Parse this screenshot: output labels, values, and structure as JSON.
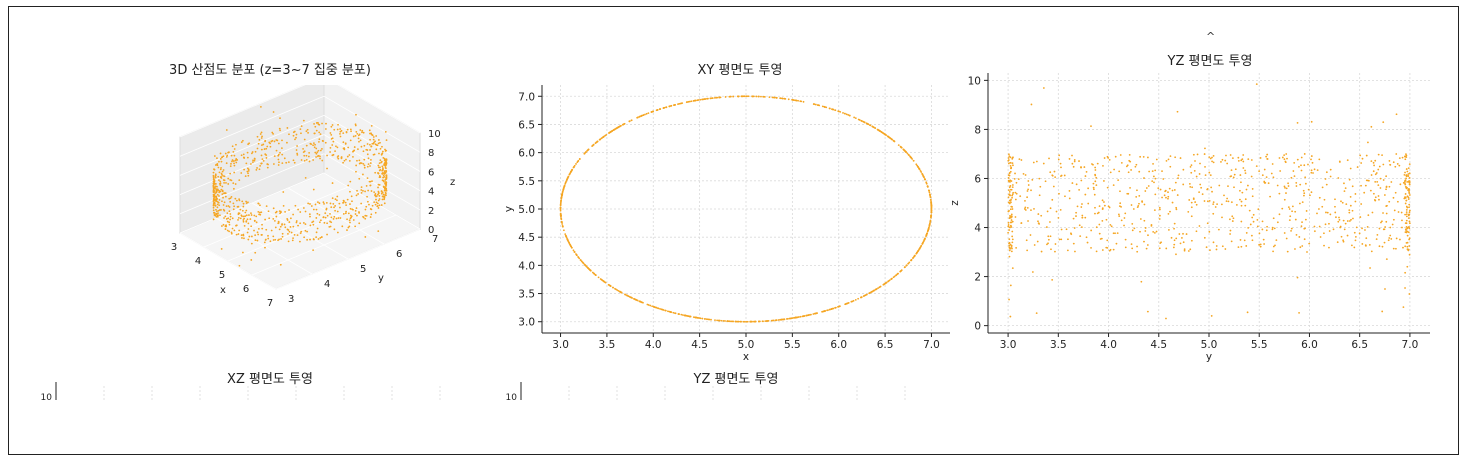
{
  "colors": {
    "points": "#f5a623",
    "axis": "#222222",
    "grid": "#d9d9d9",
    "pane": "#f2f2f2"
  },
  "caret": "^",
  "chart_data": [
    {
      "id": "p3d",
      "type": "scatter",
      "title": "3D 산점도 분포 (z=3~7 집중 분포)",
      "xlabel": "x",
      "ylabel": "y",
      "zlabel": "z",
      "xlim": [
        3,
        7
      ],
      "ylim": [
        3,
        7
      ],
      "zlim": [
        0,
        10
      ],
      "x_ticks": [
        "3",
        "4",
        "5",
        "6",
        "7"
      ],
      "y_ticks": [
        "3",
        "4",
        "5",
        "6",
        "7"
      ],
      "z_ticks": [
        "0",
        "2",
        "4",
        "6",
        "8",
        "10"
      ],
      "grid": true,
      "points_description_note": "",
      "circle": {
        "center": [
          5,
          5
        ],
        "radius": 2
      },
      "z_dense_range": [
        3,
        7
      ],
      "z_full_range": [
        0,
        10
      ],
      "n_points": 1000
    },
    {
      "id": "pxy",
      "type": "scatter",
      "title": "XY 평면도 투영",
      "xlabel": "x",
      "ylabel": "y",
      "xlim": [
        2.8,
        7.2
      ],
      "ylim": [
        2.8,
        7.2
      ],
      "x_ticks": [
        "3.0",
        "3.5",
        "4.0",
        "4.5",
        "5.0",
        "5.5",
        "6.0",
        "6.5",
        "7.0"
      ],
      "y_ticks": [
        "3.0",
        "3.5",
        "4.0",
        "4.5",
        "5.0",
        "5.5",
        "6.0",
        "6.5",
        "7.0"
      ],
      "grid": true,
      "circle": {
        "center": [
          5,
          5
        ],
        "radius": 2
      },
      "n_points": 1000
    },
    {
      "id": "pyz",
      "type": "scatter",
      "title": "YZ 평면도 투영",
      "xlabel": "y",
      "ylabel": "z",
      "xlim": [
        2.8,
        7.2
      ],
      "ylim": [
        -0.3,
        10.3
      ],
      "x_ticks": [
        "3.0",
        "3.5",
        "4.0",
        "4.5",
        "5.0",
        "5.5",
        "6.0",
        "6.5",
        "7.0"
      ],
      "y_ticks": [
        "0",
        "2",
        "4",
        "6",
        "8",
        "10"
      ],
      "grid": true,
      "z_dense_range": [
        3,
        7
      ],
      "n_points": 1000
    },
    {
      "id": "pxz",
      "type": "scatter",
      "title": "XZ 평면도 투영",
      "ytick_partial": "10",
      "grid": true
    },
    {
      "id": "pyz2",
      "type": "scatter",
      "title": "YZ 평면도 투영",
      "ytick_partial": "10",
      "grid": true
    }
  ]
}
